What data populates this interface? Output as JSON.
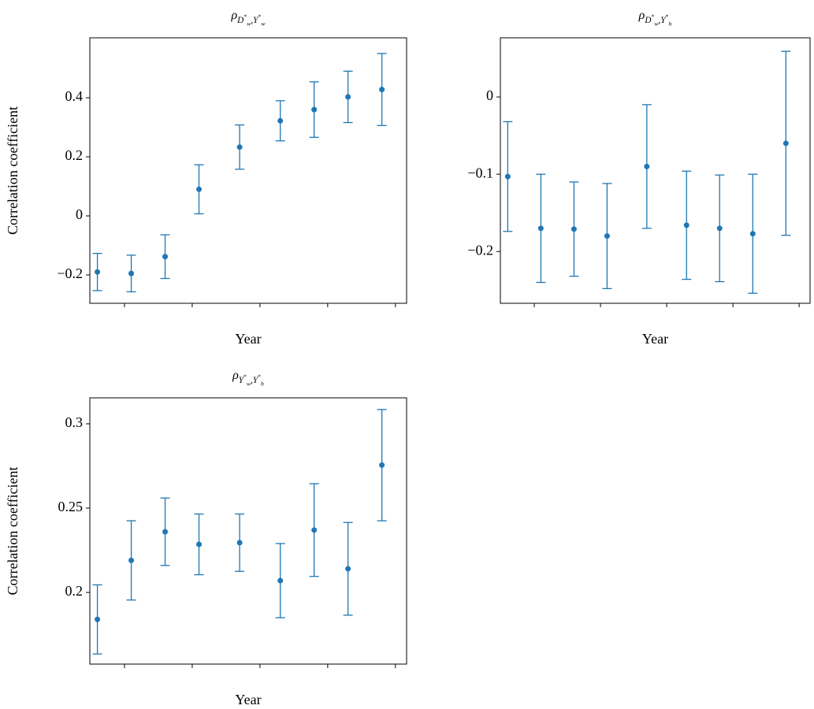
{
  "chart_data": [
    {
      "type": "errorbar",
      "title": "ρ_{D^*_w,Y^*_w}",
      "x_label": "Year",
      "y_label": "Correlation coefficient",
      "color": "#1f77b4",
      "x": [
        1.2,
        2.2,
        3.2,
        4.2,
        5.4,
        6.6,
        7.6,
        8.6,
        9.6
      ],
      "values": [
        -0.19,
        -0.195,
        -0.138,
        0.09,
        0.233,
        0.322,
        0.36,
        0.403,
        0.428
      ],
      "errors": [
        0.063,
        0.062,
        0.074,
        0.083,
        0.075,
        0.068,
        0.094,
        0.087,
        0.122
      ],
      "xlim": [
        0.977,
        10.33
      ],
      "xticks": [
        2,
        4,
        6,
        8,
        10
      ],
      "ylim": [
        -0.296,
        0.603
      ],
      "yticks": [
        {
          "value": -0.2,
          "label": "−0.2"
        },
        0,
        0.2,
        0.4
      ]
    },
    {
      "type": "errorbar",
      "title": "ρ_{D^*_w,Y^*_h}",
      "x_label": "Year",
      "color": "#1f77b4",
      "x": [
        1.2,
        2.2,
        3.2,
        4.2,
        5.4,
        6.6,
        7.6,
        8.6,
        9.6
      ],
      "values": [
        -0.103,
        -0.17,
        -0.171,
        -0.18,
        -0.09,
        -0.166,
        -0.17,
        -0.177,
        -0.06
      ],
      "errors": [
        0.071,
        0.07,
        0.061,
        0.068,
        0.08,
        0.07,
        0.069,
        0.077,
        0.119
      ],
      "xlim": [
        0.977,
        10.33
      ],
      "xticks": [
        2,
        4,
        6,
        8,
        10
      ],
      "ylim": [
        -0.267,
        0.0765
      ],
      "yticks": [
        {
          "value": -0.2,
          "label": "−0.2"
        },
        {
          "value": -0.1,
          "label": "−0.1"
        },
        0
      ]
    },
    {
      "type": "errorbar",
      "title": "ρ_{Y^*_w,Y^*_h}",
      "x_label": "Year",
      "y_label": "Correlation coefficient",
      "color": "#1f77b4",
      "x": [
        1.2,
        2.2,
        3.2,
        4.2,
        5.4,
        6.6,
        7.6,
        8.6,
        9.6
      ],
      "values": [
        0.184,
        0.219,
        0.236,
        0.2285,
        0.2295,
        0.207,
        0.237,
        0.214,
        0.2755
      ],
      "errors": [
        0.0205,
        0.0235,
        0.02,
        0.018,
        0.017,
        0.022,
        0.0275,
        0.0275,
        0.033
      ],
      "xlim": [
        0.977,
        10.33
      ],
      "xticks": [
        2,
        4,
        6,
        8,
        10
      ],
      "ylim": [
        0.1575,
        0.3154
      ],
      "yticks": [
        0.2,
        0.25,
        0.3
      ]
    }
  ]
}
